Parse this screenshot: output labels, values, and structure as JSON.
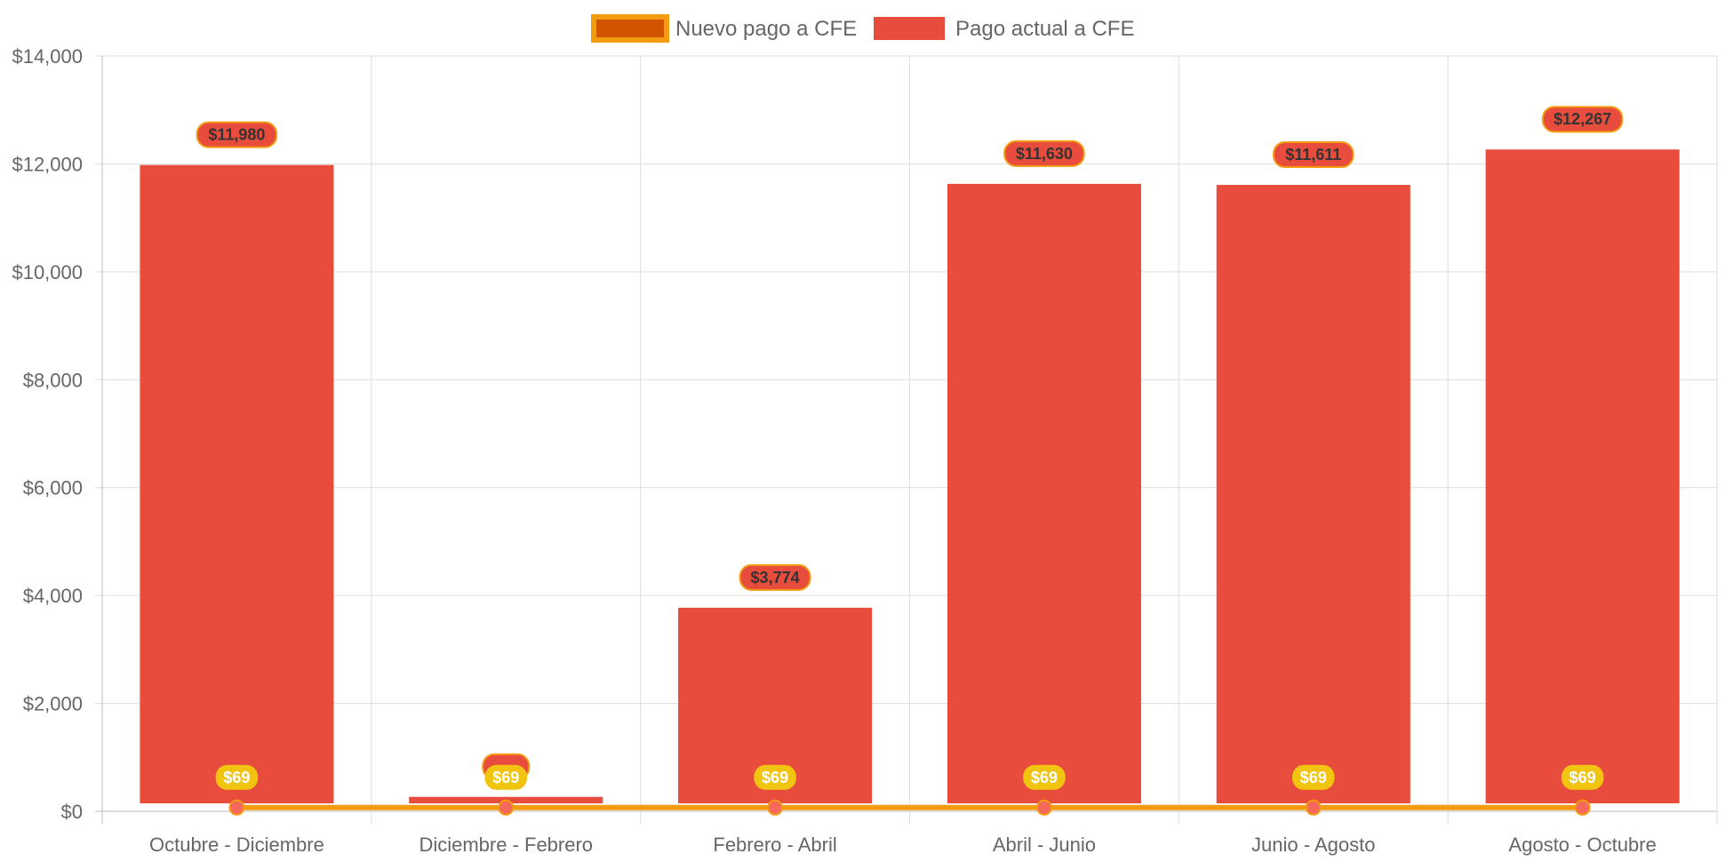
{
  "chart_data": {
    "type": "bar",
    "categories": [
      "Octubre - Diciembre",
      "Diciembre - Febrero",
      "Febrero - Abril",
      "Abril - Junio",
      "Junio - Agosto",
      "Agosto - Octubre"
    ],
    "series": [
      {
        "name": "Nuevo pago a CFE",
        "type": "line",
        "values": [
          69,
          69,
          69,
          69,
          69,
          69
        ],
        "data_labels": [
          "$69",
          "$69",
          "$69",
          "$69",
          "$69",
          "$69"
        ],
        "color": "#f39c12"
      },
      {
        "name": "Pago actual a CFE",
        "type": "bar",
        "values": [
          11980,
          268,
          3774,
          11630,
          11611,
          12267
        ],
        "data_labels": [
          "$11,980",
          "",
          "$3,774",
          "$11,630",
          "$11,611",
          "$12,267"
        ],
        "color": "#e74c3c"
      }
    ],
    "y_ticks": [
      "$0",
      "$2,000",
      "$4,000",
      "$6,000",
      "$8,000",
      "$10,000",
      "$12,000",
      "$14,000"
    ],
    "ylim": [
      0,
      14000
    ],
    "grid": true,
    "legend_position": "top-center",
    "colors": {
      "bar_fill": "#e74c3c",
      "line_stroke": "#f39c12",
      "legend_line_fill": "#d35400",
      "line_label_bg": "#f1c40f",
      "grid": "#dddddd",
      "tick_text": "#666666"
    }
  }
}
